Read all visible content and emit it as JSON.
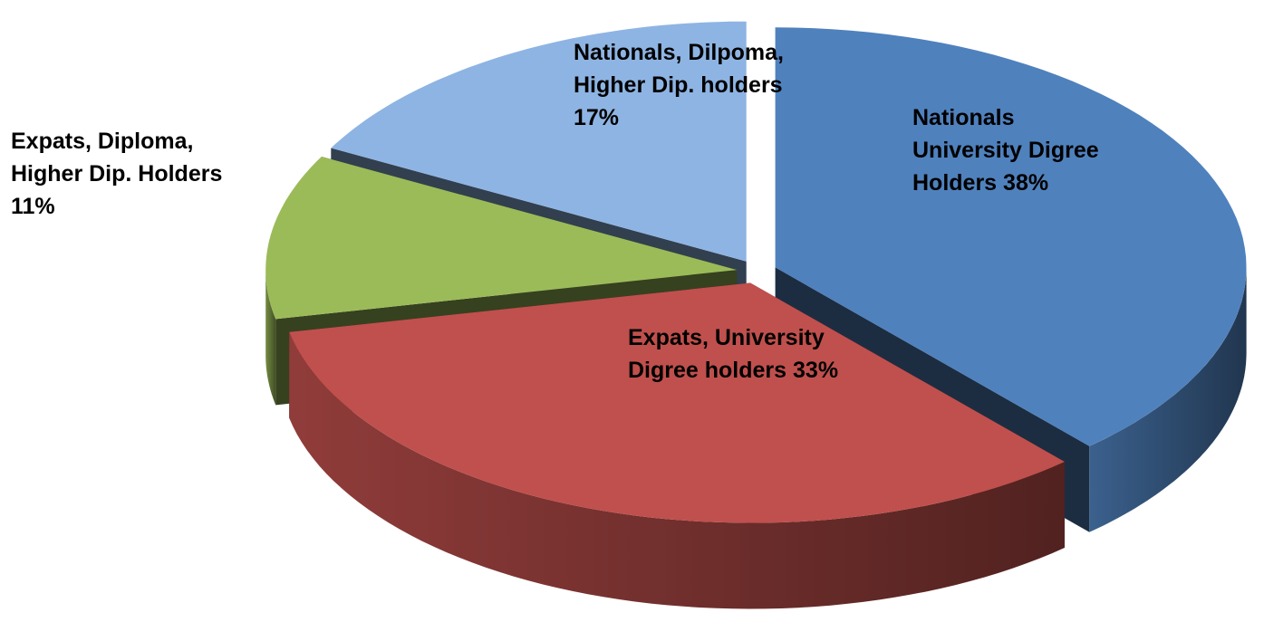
{
  "chart_data": {
    "type": "pie",
    "categories": [
      "Nationals University Digree Holders",
      "Expats, University Digree holders",
      "Expats, Diploma, Higher Dip. Holders",
      "Nationals, Dilpoma, Higher Dip. holders"
    ],
    "values": [
      38,
      33,
      11,
      17
    ],
    "value_labels": [
      "38%",
      "33%",
      "11%",
      "17%"
    ],
    "colors": [
      "#4f81bd",
      "#c0504d",
      "#9bbb59",
      "#8eb4e3"
    ],
    "three_d": true,
    "exploded": true
  }
}
